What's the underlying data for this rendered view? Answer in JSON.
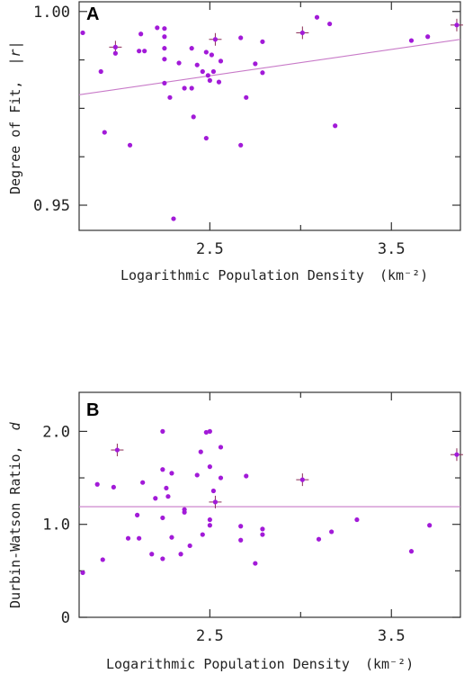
{
  "chart_data": [
    {
      "panel": "A",
      "type": "scatter",
      "xlabel": "Logarithmic Population Density",
      "xlabel_unit": "(km⁻²)",
      "ylabel": "Degree of Fit,",
      "ylabel_symbol": "|r|",
      "xlim": [
        1.78,
        3.88
      ],
      "ylim": [
        0.9435,
        1.0025
      ],
      "xticks": [
        {
          "value": 2.5,
          "label": "2.5"
        },
        {
          "value": 3.5,
          "label": "3.5"
        }
      ],
      "xticks_minor": [
        3.0
      ],
      "yticks": [
        {
          "value": 0.95,
          "label": "0.95"
        },
        {
          "value": 1.0,
          "label": "1.00"
        }
      ],
      "yticks_minor": [
        0.9625,
        0.975,
        0.9875
      ],
      "points": [
        {
          "x": 1.8,
          "y": 0.9945
        },
        {
          "x": 1.9,
          "y": 0.9845
        },
        {
          "x": 1.92,
          "y": 0.9688
        },
        {
          "x": 1.98,
          "y": 0.9908,
          "err": true
        },
        {
          "x": 1.98,
          "y": 0.9892
        },
        {
          "x": 2.06,
          "y": 0.9655
        },
        {
          "x": 2.11,
          "y": 0.9898
        },
        {
          "x": 2.12,
          "y": 0.9942
        },
        {
          "x": 2.14,
          "y": 0.9898
        },
        {
          "x": 2.21,
          "y": 0.9958
        },
        {
          "x": 2.25,
          "y": 0.9956
        },
        {
          "x": 2.25,
          "y": 0.9935
        },
        {
          "x": 2.25,
          "y": 0.9905
        },
        {
          "x": 2.25,
          "y": 0.9877
        },
        {
          "x": 2.25,
          "y": 0.9815
        },
        {
          "x": 2.28,
          "y": 0.9778
        },
        {
          "x": 2.3,
          "y": 0.9465
        },
        {
          "x": 2.33,
          "y": 0.9867
        },
        {
          "x": 2.36,
          "y": 0.9802
        },
        {
          "x": 2.4,
          "y": 0.9905
        },
        {
          "x": 2.4,
          "y": 0.9802
        },
        {
          "x": 2.41,
          "y": 0.9728
        },
        {
          "x": 2.43,
          "y": 0.9862
        },
        {
          "x": 2.46,
          "y": 0.9845
        },
        {
          "x": 2.48,
          "y": 0.9895
        },
        {
          "x": 2.48,
          "y": 0.9673
        },
        {
          "x": 2.49,
          "y": 0.9835
        },
        {
          "x": 2.5,
          "y": 0.9822
        },
        {
          "x": 2.51,
          "y": 0.9888
        },
        {
          "x": 2.52,
          "y": 0.9845
        },
        {
          "x": 2.53,
          "y": 0.9928,
          "err": true
        },
        {
          "x": 2.55,
          "y": 0.9818
        },
        {
          "x": 2.56,
          "y": 0.9872
        },
        {
          "x": 2.67,
          "y": 0.9932
        },
        {
          "x": 2.67,
          "y": 0.9655
        },
        {
          "x": 2.7,
          "y": 0.9778
        },
        {
          "x": 2.75,
          "y": 0.9865
        },
        {
          "x": 2.79,
          "y": 0.9922
        },
        {
          "x": 2.79,
          "y": 0.9842
        },
        {
          "x": 3.01,
          "y": 0.9945,
          "err": true
        },
        {
          "x": 3.09,
          "y": 0.9985
        },
        {
          "x": 3.16,
          "y": 0.9968
        },
        {
          "x": 3.19,
          "y": 0.9705
        },
        {
          "x": 3.61,
          "y": 0.9925
        },
        {
          "x": 3.7,
          "y": 0.9935
        },
        {
          "x": 3.86,
          "y": 0.9965,
          "err": true
        }
      ],
      "fit_line": {
        "x1": 1.78,
        "y1": 0.9785,
        "x2": 3.88,
        "y2": 0.9928
      }
    },
    {
      "panel": "B",
      "type": "scatter",
      "xlabel": "Logarithmic Population Density",
      "xlabel_unit": "(km⁻²)",
      "ylabel": "Durbin-Watson Ratio,",
      "ylabel_symbol": "d",
      "xlim": [
        1.78,
        3.88
      ],
      "ylim": [
        0,
        2.42
      ],
      "xticks": [
        {
          "value": 2.5,
          "label": "2.5"
        },
        {
          "value": 3.5,
          "label": "3.5"
        }
      ],
      "xticks_minor": [
        3.0
      ],
      "yticks": [
        {
          "value": 0,
          "label": "0"
        },
        {
          "value": 1.0,
          "label": "1.0"
        },
        {
          "value": 2.0,
          "label": "2.0"
        }
      ],
      "yticks_minor": [
        0.5,
        1.5
      ],
      "points": [
        {
          "x": 1.8,
          "y": 0.48
        },
        {
          "x": 1.88,
          "y": 1.43
        },
        {
          "x": 1.91,
          "y": 0.62
        },
        {
          "x": 1.97,
          "y": 1.4
        },
        {
          "x": 1.99,
          "y": 1.8,
          "err": true
        },
        {
          "x": 2.05,
          "y": 0.85
        },
        {
          "x": 2.1,
          "y": 1.1
        },
        {
          "x": 2.11,
          "y": 0.85
        },
        {
          "x": 2.13,
          "y": 1.45
        },
        {
          "x": 2.18,
          "y": 0.68
        },
        {
          "x": 2.2,
          "y": 1.28
        },
        {
          "x": 2.24,
          "y": 2.0
        },
        {
          "x": 2.24,
          "y": 1.59
        },
        {
          "x": 2.24,
          "y": 1.07
        },
        {
          "x": 2.24,
          "y": 0.63
        },
        {
          "x": 2.26,
          "y": 1.39
        },
        {
          "x": 2.27,
          "y": 1.3
        },
        {
          "x": 2.29,
          "y": 1.55
        },
        {
          "x": 2.29,
          "y": 0.86
        },
        {
          "x": 2.34,
          "y": 0.68
        },
        {
          "x": 2.36,
          "y": 1.16
        },
        {
          "x": 2.36,
          "y": 1.13
        },
        {
          "x": 2.39,
          "y": 0.77
        },
        {
          "x": 2.43,
          "y": 1.53
        },
        {
          "x": 2.45,
          "y": 1.78
        },
        {
          "x": 2.46,
          "y": 0.89
        },
        {
          "x": 2.48,
          "y": 1.99
        },
        {
          "x": 2.5,
          "y": 2.0
        },
        {
          "x": 2.5,
          "y": 1.62
        },
        {
          "x": 2.5,
          "y": 1.05
        },
        {
          "x": 2.5,
          "y": 0.99
        },
        {
          "x": 2.52,
          "y": 1.36
        },
        {
          "x": 2.53,
          "y": 1.24,
          "err": true
        },
        {
          "x": 2.56,
          "y": 1.83
        },
        {
          "x": 2.56,
          "y": 1.5
        },
        {
          "x": 2.67,
          "y": 0.98
        },
        {
          "x": 2.67,
          "y": 0.83
        },
        {
          "x": 2.7,
          "y": 1.52
        },
        {
          "x": 2.75,
          "y": 0.58
        },
        {
          "x": 2.79,
          "y": 0.95
        },
        {
          "x": 2.79,
          "y": 0.89
        },
        {
          "x": 3.01,
          "y": 1.48,
          "err": true
        },
        {
          "x": 3.1,
          "y": 0.84
        },
        {
          "x": 3.17,
          "y": 0.92
        },
        {
          "x": 3.31,
          "y": 1.05
        },
        {
          "x": 3.61,
          "y": 0.71
        },
        {
          "x": 3.71,
          "y": 0.99
        },
        {
          "x": 3.86,
          "y": 1.75,
          "err": true
        }
      ],
      "fit_line": {
        "x1": 1.78,
        "y1": 1.19,
        "x2": 3.88,
        "y2": 1.19
      }
    }
  ]
}
